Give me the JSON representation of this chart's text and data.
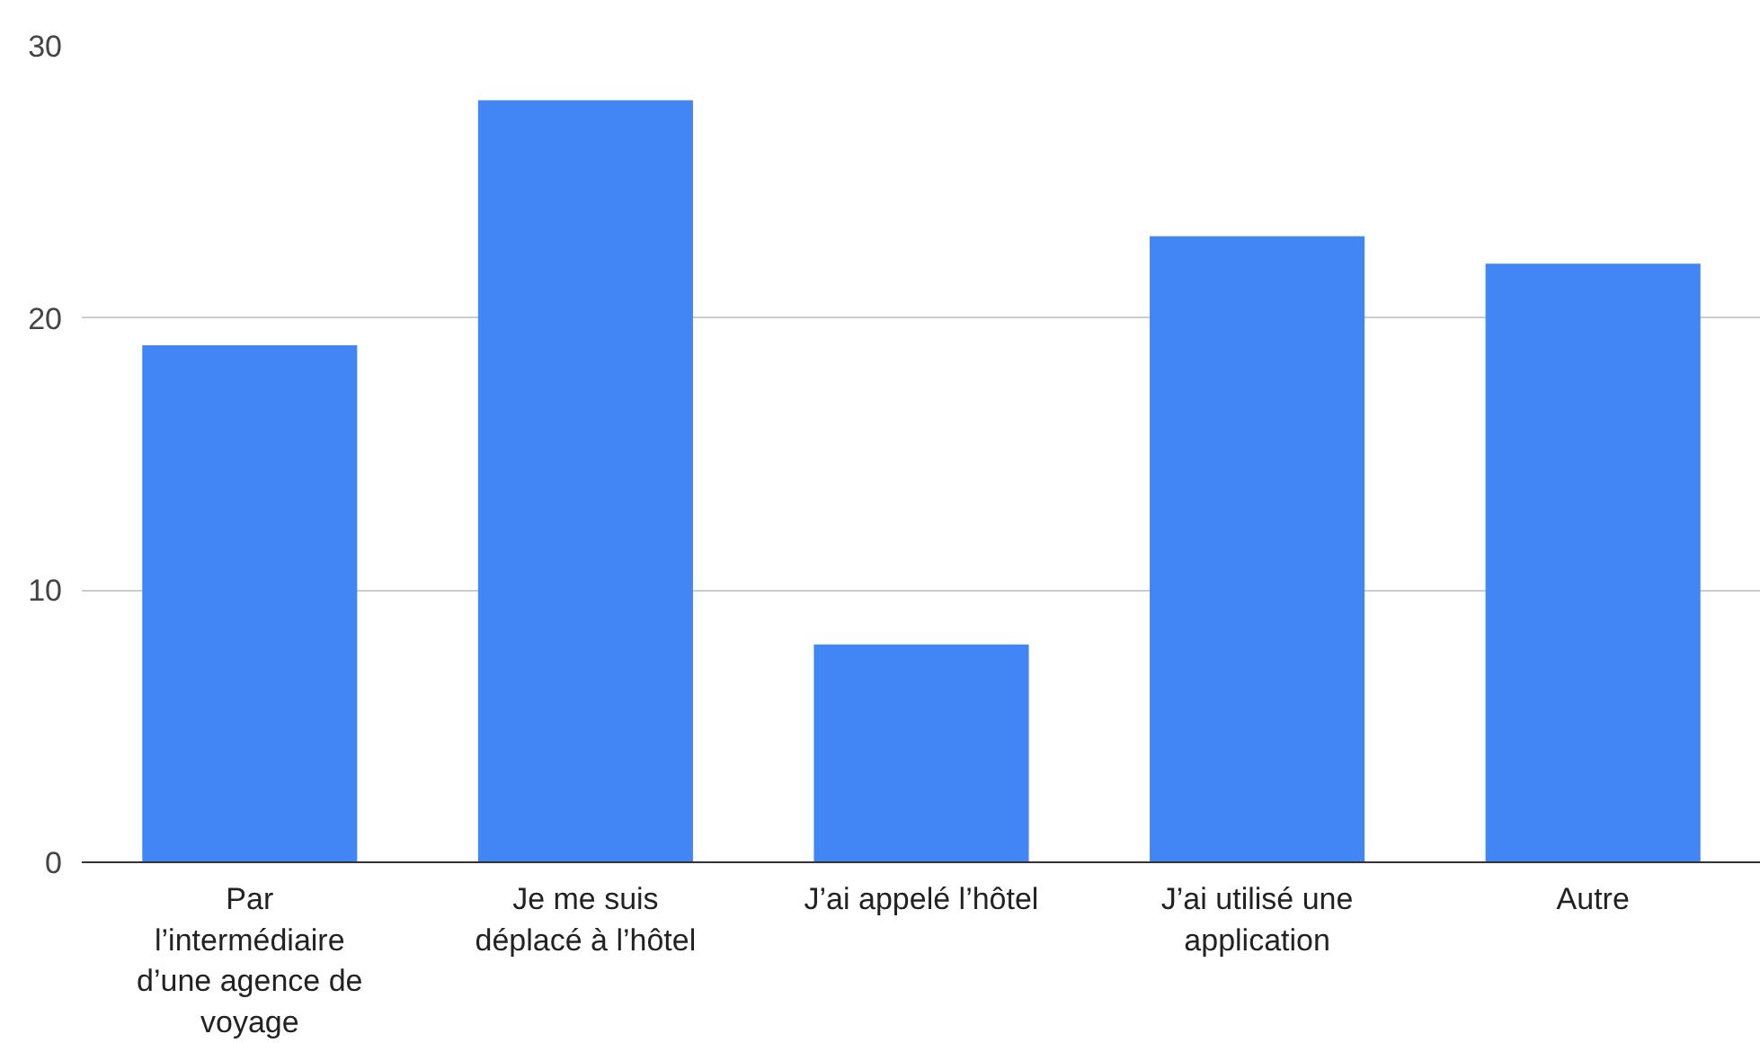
{
  "chart_data": {
    "type": "bar",
    "categories": [
      "Par l’intermédiaire d’une agence de voyage",
      "Je me suis déplacé à l’hôtel",
      "J’ai appelé l’hôtel",
      "J’ai utilisé une application",
      "Autre"
    ],
    "values": [
      19,
      28,
      8,
      23,
      22
    ],
    "color": "#4285f4",
    "ylim": [
      0,
      30
    ],
    "yticks": [
      0,
      10,
      20,
      30
    ],
    "grid": "y"
  }
}
